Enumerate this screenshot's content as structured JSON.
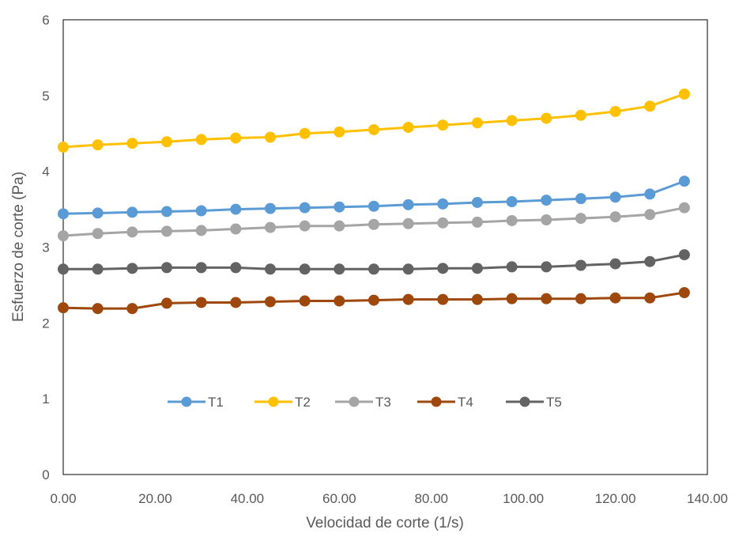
{
  "chart_data": {
    "type": "line",
    "title": "",
    "xlabel": "Velocidad de corte (1/s)",
    "ylabel": "Esfuerzo de corte (Pa)",
    "xlim": [
      0,
      140
    ],
    "ylim": [
      0,
      6
    ],
    "x_ticks": [
      "0.00",
      "20.00",
      "40.00",
      "60.00",
      "80.00",
      "100.00",
      "120.00",
      "140.00"
    ],
    "y_ticks": [
      "0",
      "1",
      "2",
      "3",
      "4",
      "5",
      "6"
    ],
    "grid": false,
    "legend_position": "bottom-inside",
    "x": [
      0,
      7.5,
      15,
      22.5,
      30,
      37.5,
      45,
      52.5,
      60,
      67.5,
      75,
      82.5,
      90,
      97.5,
      105,
      112.5,
      120,
      127.5,
      135
    ],
    "series": [
      {
        "name": "T1",
        "color": "#5B9BD5",
        "values": [
          3.44,
          3.45,
          3.46,
          3.47,
          3.48,
          3.5,
          3.51,
          3.52,
          3.53,
          3.54,
          3.56,
          3.57,
          3.59,
          3.6,
          3.62,
          3.64,
          3.66,
          3.7,
          3.87
        ]
      },
      {
        "name": "T2",
        "color": "#FFC000",
        "values": [
          4.32,
          4.35,
          4.37,
          4.39,
          4.42,
          4.44,
          4.45,
          4.5,
          4.52,
          4.55,
          4.58,
          4.61,
          4.64,
          4.67,
          4.7,
          4.74,
          4.79,
          4.86,
          5.02
        ]
      },
      {
        "name": "T3",
        "color": "#A5A5A5",
        "values": [
          3.15,
          3.18,
          3.2,
          3.21,
          3.22,
          3.24,
          3.26,
          3.28,
          3.28,
          3.3,
          3.31,
          3.32,
          3.33,
          3.35,
          3.36,
          3.38,
          3.4,
          3.43,
          3.52
        ]
      },
      {
        "name": "T4",
        "color": "#9E480E",
        "values": [
          2.2,
          2.19,
          2.19,
          2.26,
          2.27,
          2.27,
          2.28,
          2.29,
          2.29,
          2.3,
          2.31,
          2.31,
          2.31,
          2.32,
          2.32,
          2.32,
          2.33,
          2.33,
          2.4
        ]
      },
      {
        "name": "T5",
        "color": "#636363",
        "values": [
          2.71,
          2.71,
          2.72,
          2.73,
          2.73,
          2.73,
          2.71,
          2.71,
          2.71,
          2.71,
          2.71,
          2.72,
          2.72,
          2.74,
          2.74,
          2.76,
          2.78,
          2.81,
          2.9
        ]
      }
    ]
  }
}
